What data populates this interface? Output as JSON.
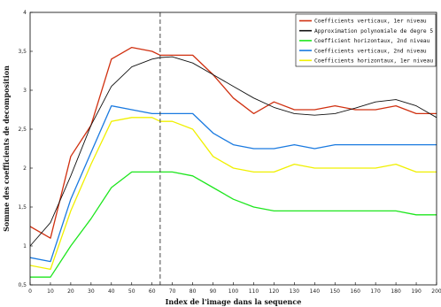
{
  "chart_data": {
    "type": "line",
    "xlabel": "Index de l'image dans la sequence",
    "ylabel": "Somme des coefficients de decomposition",
    "xlim": [
      0,
      200
    ],
    "ylim": [
      0.5,
      4
    ],
    "xticks": [
      0,
      10,
      20,
      30,
      40,
      50,
      60,
      70,
      80,
      90,
      100,
      110,
      120,
      130,
      140,
      150,
      160,
      170,
      180,
      190,
      200
    ],
    "yticks": [
      0.5,
      1,
      1.5,
      2,
      2.5,
      3,
      3.5,
      4
    ],
    "ytick_labels": [
      "0,5",
      "1",
      "1,5",
      "2",
      "2,5",
      "3",
      "3,5",
      "4"
    ],
    "grid": false,
    "legend_position": "top-right",
    "vline": {
      "x": 64,
      "style": "dashed"
    },
    "x": [
      0,
      10,
      20,
      30,
      40,
      50,
      60,
      64,
      70,
      80,
      90,
      100,
      110,
      120,
      130,
      140,
      150,
      160,
      170,
      180,
      190,
      200
    ],
    "series": [
      {
        "name": "Coefficients verticaux, 1er niveau",
        "color": "#d03010",
        "values": [
          1.25,
          1.1,
          2.15,
          2.55,
          3.4,
          3.55,
          3.5,
          3.45,
          3.45,
          3.45,
          3.2,
          2.9,
          2.7,
          2.85,
          2.75,
          2.75,
          2.8,
          2.75,
          2.75,
          2.8,
          2.7,
          2.7
        ]
      },
      {
        "name": "Approximation polynomiale de degre 5",
        "color": "#111111",
        "values": [
          1.0,
          1.3,
          1.9,
          2.55,
          3.05,
          3.3,
          3.4,
          3.42,
          3.43,
          3.35,
          3.2,
          3.05,
          2.9,
          2.78,
          2.7,
          2.68,
          2.7,
          2.77,
          2.85,
          2.88,
          2.8,
          2.65
        ]
      },
      {
        "name": "Coefficient horizontaux, 2nd niveau",
        "color": "#1ee61e",
        "values": [
          0.6,
          0.6,
          1.0,
          1.35,
          1.75,
          1.95,
          1.95,
          1.95,
          1.95,
          1.9,
          1.75,
          1.6,
          1.5,
          1.45,
          1.45,
          1.45,
          1.45,
          1.45,
          1.45,
          1.45,
          1.4,
          1.4
        ]
      },
      {
        "name": "Coefficients verticaux, 2nd niveau",
        "color": "#1a7ae0",
        "values": [
          0.85,
          0.8,
          1.6,
          2.2,
          2.8,
          2.75,
          2.7,
          2.7,
          2.7,
          2.7,
          2.45,
          2.3,
          2.25,
          2.25,
          2.3,
          2.25,
          2.3,
          2.3,
          2.3,
          2.3,
          2.3,
          2.3
        ]
      },
      {
        "name": "Coefficients horizontaux, 1er niveau",
        "color": "#f0f000",
        "values": [
          0.75,
          0.7,
          1.45,
          2.05,
          2.6,
          2.65,
          2.65,
          2.6,
          2.6,
          2.5,
          2.15,
          2.0,
          1.95,
          1.95,
          2.05,
          2.0,
          2.0,
          2.0,
          2.0,
          2.05,
          1.95,
          1.95
        ]
      }
    ]
  }
}
